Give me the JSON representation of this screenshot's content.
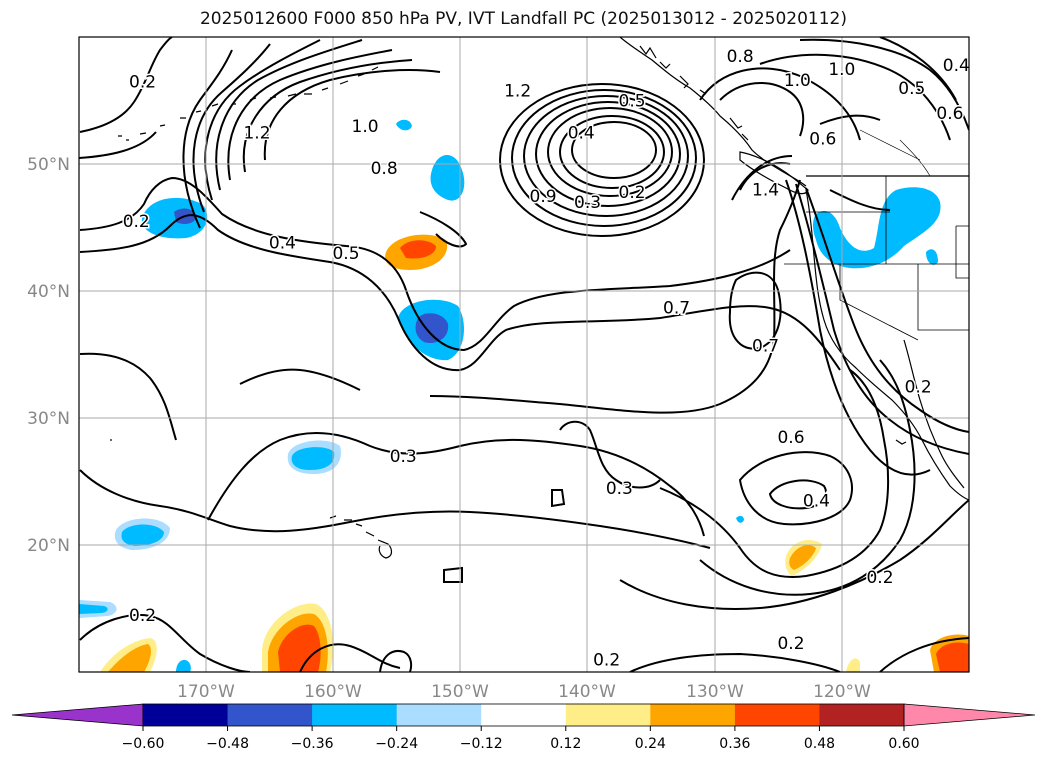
{
  "title": "2025012600 F000 850 hPa PV, IVT Landfall PC (2025013012 - 2025020112)",
  "map": {
    "lon_range": [
      -180,
      -110
    ],
    "lat_range": [
      10,
      60
    ],
    "lon_ticks": [
      {
        "value": -170,
        "label": "170°W"
      },
      {
        "value": -160,
        "label": "160°W"
      },
      {
        "value": -150,
        "label": "150°W"
      },
      {
        "value": -140,
        "label": "140°W"
      },
      {
        "value": -130,
        "label": "130°W"
      },
      {
        "value": -120,
        "label": "120°W"
      }
    ],
    "lat_ticks": [
      {
        "value": 20,
        "label": "20°N"
      },
      {
        "value": 30,
        "label": "30°N"
      },
      {
        "value": 40,
        "label": "40°N"
      },
      {
        "value": 50,
        "label": "50°N"
      }
    ],
    "grid": true,
    "grid_color": "#aaaaaa",
    "tick_label_color": "#888888",
    "contour_labels": [
      {
        "text": "0.2",
        "lon": -175.0,
        "lat": 56.5
      },
      {
        "text": "1.2",
        "lon": -166.0,
        "lat": 52.5
      },
      {
        "text": "1.0",
        "lon": -157.5,
        "lat": 53.0
      },
      {
        "text": "1.2",
        "lon": -145.5,
        "lat": 55.8
      },
      {
        "text": "0.8",
        "lon": -156.0,
        "lat": 49.7
      },
      {
        "text": "0.2",
        "lon": -175.5,
        "lat": 45.5
      },
      {
        "text": "0.4",
        "lon": -164.0,
        "lat": 43.8
      },
      {
        "text": "0.5",
        "lon": -159.0,
        "lat": 43.0
      },
      {
        "text": "0.5",
        "lon": -136.5,
        "lat": 55.0
      },
      {
        "text": "0.4",
        "lon": -140.5,
        "lat": 52.5
      },
      {
        "text": "0.2",
        "lon": -136.5,
        "lat": 47.8
      },
      {
        "text": "0.3",
        "lon": -140.0,
        "lat": 47.0
      },
      {
        "text": "0.9",
        "lon": -143.5,
        "lat": 47.5
      },
      {
        "text": "0.8",
        "lon": -128.0,
        "lat": 58.5
      },
      {
        "text": "1.0",
        "lon": -123.5,
        "lat": 56.6
      },
      {
        "text": "1.0",
        "lon": -120.0,
        "lat": 57.5
      },
      {
        "text": "0.6",
        "lon": -121.5,
        "lat": 52.0
      },
      {
        "text": "1.4",
        "lon": -126.0,
        "lat": 48.0
      },
      {
        "text": "0.5",
        "lon": -114.5,
        "lat": 56.0
      },
      {
        "text": "0.6",
        "lon": -111.5,
        "lat": 54.0
      },
      {
        "text": "0.4",
        "lon": -111.0,
        "lat": 57.8
      },
      {
        "text": "0.7",
        "lon": -133.0,
        "lat": 38.7
      },
      {
        "text": "0.7",
        "lon": -126.0,
        "lat": 35.7
      },
      {
        "text": "0.2",
        "lon": -114.0,
        "lat": 32.5
      },
      {
        "text": "0.3",
        "lon": -154.5,
        "lat": 27.0
      },
      {
        "text": "0.6",
        "lon": -124.0,
        "lat": 28.5
      },
      {
        "text": "0.3",
        "lon": -137.5,
        "lat": 24.5
      },
      {
        "text": "0.4",
        "lon": -122.0,
        "lat": 23.5
      },
      {
        "text": "0.2",
        "lon": -117.0,
        "lat": 17.5
      },
      {
        "text": "0.2",
        "lon": -175.0,
        "lat": 14.5
      },
      {
        "text": "0.2",
        "lon": -124.0,
        "lat": 12.3
      },
      {
        "text": "0.2",
        "lon": -138.5,
        "lat": 11.0
      }
    ]
  },
  "colorbar": {
    "ticks": [
      "−0.60",
      "−0.48",
      "−0.36",
      "−0.24",
      "−0.12",
      "0.12",
      "0.24",
      "0.36",
      "0.48",
      "0.60"
    ],
    "colors": [
      "#9933cc",
      "#000099",
      "#3355cc",
      "#00bbff",
      "#aaddff",
      "#ffffff",
      "#ffee88",
      "#ffa500",
      "#ff4500",
      "#b22222",
      "#ff88aa"
    ]
  }
}
